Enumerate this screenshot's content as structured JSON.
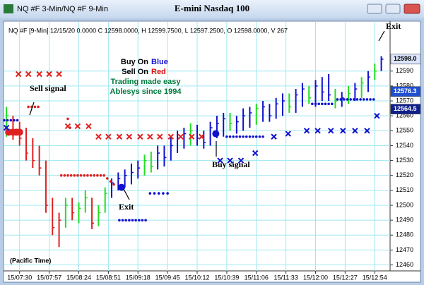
{
  "chart_data": {
    "type": "ohlc",
    "window_title": "NQ #F 3-Min/NQ #F 9-Min",
    "title": "E-mini Nasdaq 100",
    "info": "NQ #F [9-Min] 12/15/20 0.0000 C 12598.0000, H 12599.7500, L 12597.2500, O 12598.0000, V 267",
    "legend_text": [
      {
        "text": "Buy On",
        "color": "#000000"
      },
      {
        "text": "Blue",
        "color": "#1010d0"
      },
      {
        "text": "Sell On",
        "color": "#000000"
      },
      {
        "text": "Red",
        "color": "#e01010"
      },
      {
        "text": "Trading made easy",
        "color": "#007a3d"
      },
      {
        "text": "Ablesys since 1994",
        "color": "#007a3d"
      }
    ],
    "annotations": [
      "Sell signal",
      "Exit",
      "Buy signal",
      "Exit",
      "(Pacific Time)"
    ],
    "xlim": [
      -14,
      338
    ],
    "ylim": [
      12456,
      12623
    ],
    "xticks": [
      {
        "value": 0,
        "label": "15/07:30"
      },
      {
        "value": 27,
        "label": "15/07:57"
      },
      {
        "value": 54,
        "label": "15/08:24"
      },
      {
        "value": 81,
        "label": "15/08:51"
      },
      {
        "value": 108,
        "label": "15/09:18"
      },
      {
        "value": 135,
        "label": "15/09:45"
      },
      {
        "value": 162,
        "label": "15/10:12"
      },
      {
        "value": 189,
        "label": "15/10:39"
      },
      {
        "value": 216,
        "label": "15/11:06"
      },
      {
        "value": 243,
        "label": "15/11:33"
      },
      {
        "value": 270,
        "label": "15/12:00"
      },
      {
        "value": 297,
        "label": "15/12:27"
      },
      {
        "value": 324,
        "label": "15/12:54"
      }
    ],
    "yticks": [
      12460,
      12470,
      12480,
      12490,
      12500,
      12510,
      12520,
      12530,
      12540,
      12550,
      12560,
      12570,
      12580,
      12590
    ],
    "price_markers": [
      {
        "value": 12598,
        "label": "12598.0",
        "color": "#dce6ff",
        "text_color": "#000000"
      },
      {
        "value": 12576.3,
        "label": "12576.3",
        "color": "#2050d0",
        "text_color": "#ffffff"
      },
      {
        "value": 12564.5,
        "label": "12564.5",
        "color": "#10208a",
        "text_color": "#ffffff"
      }
    ],
    "grid": true,
    "grid_color": "#9ee8f0",
    "bars": {
      "x": [
        -12,
        -6,
        0,
        6,
        12,
        18,
        24,
        30,
        36,
        42,
        48,
        54,
        60,
        66,
        72,
        78,
        84,
        90,
        96,
        102,
        108,
        114,
        120,
        126,
        132,
        138,
        144,
        150,
        156,
        162,
        168,
        174,
        180,
        186,
        192,
        198,
        204,
        210,
        216,
        222,
        228,
        234,
        240,
        246,
        252,
        258,
        264,
        270,
        276,
        282,
        288,
        294,
        300,
        306,
        312,
        318,
        324,
        330
      ],
      "low": [
        12546,
        12544,
        12540,
        12530,
        12525,
        12520,
        12495,
        12480,
        12472,
        12485,
        12490,
        12488,
        12495,
        12484,
        12486,
        12495,
        12505,
        12510,
        12512,
        12514,
        12518,
        12520,
        12522,
        12524,
        12526,
        12530,
        12535,
        12538,
        12540,
        12540,
        12538,
        12540,
        12545,
        12546,
        12550,
        12548,
        12550,
        12552,
        12554,
        12556,
        12556,
        12558,
        12560,
        12562,
        12562,
        12566,
        12568,
        12566,
        12570,
        12570,
        12565,
        12566,
        12568,
        12570,
        12572,
        12576,
        12584,
        12590
      ],
      "high": [
        12566,
        12560,
        12556,
        12552,
        12545,
        12540,
        12530,
        12505,
        12495,
        12505,
        12505,
        12502,
        12510,
        12505,
        12500,
        12512,
        12518,
        12522,
        12524,
        12528,
        12530,
        12534,
        12536,
        12540,
        12540,
        12546,
        12550,
        12552,
        12555,
        12554,
        12550,
        12556,
        12560,
        12562,
        12562,
        12560,
        12565,
        12566,
        12568,
        12570,
        12568,
        12572,
        12575,
        12575,
        12578,
        12582,
        12580,
        12584,
        12586,
        12588,
        12578,
        12576,
        12580,
        12582,
        12586,
        12590,
        12595,
        12600
      ],
      "close": [
        12560,
        12548,
        12545,
        12535,
        12530,
        12525,
        12500,
        12485,
        12490,
        12500,
        12495,
        12498,
        12505,
        12488,
        12495,
        12508,
        12515,
        12518,
        12520,
        12522,
        12525,
        12530,
        12526,
        12535,
        12532,
        12540,
        12545,
        12548,
        12550,
        12545,
        12542,
        12552,
        12555,
        12558,
        12555,
        12556,
        12560,
        12562,
        12565,
        12566,
        12560,
        12568,
        12570,
        12566,
        12574,
        12578,
        12572,
        12580,
        12576,
        12574,
        12570,
        12572,
        12575,
        12578,
        12582,
        12586,
        12590,
        12598
      ],
      "colors": [
        "#22dd22",
        "#e02020",
        "#e02020",
        "#e02020",
        "#e02020",
        "#e02020",
        "#e02020",
        "#e02020",
        "#e02020",
        "#22dd22",
        "#e02020",
        "#22dd22",
        "#22dd22",
        "#e02020",
        "#22dd22",
        "#22dd22",
        "#1010d0",
        "#1010d0",
        "#1010d0",
        "#1010d0",
        "#1010d0",
        "#22dd22",
        "#22dd22",
        "#1010d0",
        "#1010d0",
        "#1010d0",
        "#1010d0",
        "#1010d0",
        "#22dd22",
        "#1010d0",
        "#1010d0",
        "#1010d0",
        "#1010d0",
        "#1010d0",
        "#22dd22",
        "#1010d0",
        "#1010d0",
        "#1010d0",
        "#22dd22",
        "#1010d0",
        "#1010d0",
        "#1010d0",
        "#1010d0",
        "#22dd22",
        "#1010d0",
        "#1010d0",
        "#22dd22",
        "#1010d0",
        "#1010d0",
        "#1010d0",
        "#22dd22",
        "#1010d0",
        "#22dd22",
        "#1010d0",
        "#22dd22",
        "#1010d0",
        "#22dd22",
        "#1010d0"
      ]
    },
    "markers": [
      {
        "shape": "x",
        "color": "#e02020",
        "x": [
          -1,
          8,
          18,
          27,
          36
        ],
        "y": [
          12588,
          12588,
          12588,
          12588,
          12588
        ]
      },
      {
        "shape": "x",
        "color": "#e02020",
        "x": [
          44,
          53,
          63
        ],
        "y": [
          12553,
          12553,
          12553
        ]
      },
      {
        "shape": "x",
        "color": "#e02020",
        "x": [
          72,
          81,
          91,
          100,
          110,
          119,
          128,
          138,
          147,
          157,
          166
        ],
        "y": [
          12546,
          12546,
          12546,
          12546,
          12546,
          12546,
          12546,
          12546,
          12546,
          12546,
          12546
        ]
      },
      {
        "shape": "dot",
        "color": "#e02020",
        "x": [
          8,
          11,
          14,
          17
        ],
        "y": [
          12566,
          12566,
          12566,
          12566
        ]
      },
      {
        "shape": "dot",
        "color": "#e02020",
        "x": [
          44,
          46
        ],
        "y": [
          12558,
          12552
        ]
      },
      {
        "shape": "dot",
        "color": "#e02020",
        "x": [
          38,
          41,
          44,
          47,
          50,
          53,
          56,
          59,
          62,
          65,
          68,
          71,
          74,
          77
        ],
        "y": [
          12520,
          12520,
          12520,
          12520,
          12520,
          12520,
          12520,
          12520,
          12520,
          12520,
          12520,
          12520,
          12520,
          12520
        ]
      },
      {
        "shape": "dot",
        "color": "#e02020",
        "x": [
          80,
          83,
          86
        ],
        "y": [
          12518,
          12516,
          12514
        ]
      },
      {
        "shape": "bigdot",
        "color": "#e02020",
        "x": [
          -10,
          -6,
          -3,
          0
        ],
        "y": [
          12549,
          12549,
          12549,
          12549
        ]
      },
      {
        "shape": "dot",
        "color": "#1010d0",
        "x": [
          -14,
          -11,
          -8,
          -5,
          -2
        ],
        "y": [
          12557,
          12557,
          12557,
          12557,
          12557
        ]
      },
      {
        "shape": "dot",
        "color": "#1010d0",
        "x": [
          91,
          94,
          97,
          100,
          103,
          106,
          109,
          112,
          115
        ],
        "y": [
          12490,
          12490,
          12490,
          12490,
          12490,
          12490,
          12490,
          12490,
          12490
        ]
      },
      {
        "shape": "dot",
        "color": "#1010d0",
        "x": [
          119,
          123,
          127,
          131,
          135
        ],
        "y": [
          12508,
          12508,
          12508,
          12508,
          12508
        ]
      },
      {
        "shape": "dot",
        "color": "#1010d0",
        "x": [
          189,
          192,
          195,
          198,
          201,
          204,
          207,
          210,
          213,
          216,
          219,
          222
        ],
        "y": [
          12546,
          12546,
          12546,
          12546,
          12546,
          12546,
          12546,
          12546,
          12546,
          12546,
          12546,
          12546
        ]
      },
      {
        "shape": "dot",
        "color": "#1010d0",
        "x": [
          267,
          270,
          273,
          276,
          279,
          282,
          285
        ],
        "y": [
          12568,
          12568,
          12568,
          12568,
          12568,
          12568,
          12568
        ]
      },
      {
        "shape": "dot",
        "color": "#1010d0",
        "x": [
          290,
          293,
          296,
          299,
          302,
          305,
          308,
          311,
          314,
          317,
          320,
          323
        ],
        "y": [
          12571,
          12571,
          12571,
          12571,
          12571,
          12571,
          12571,
          12571,
          12571,
          12571,
          12571,
          12571
        ]
      },
      {
        "shape": "bigdot",
        "color": "#1010d0",
        "x": [
          93,
          179
        ],
        "y": [
          12512,
          12548
        ]
      },
      {
        "shape": "x",
        "color": "#1010d0",
        "x": [
          -12,
          183,
          192,
          202,
          215,
          232,
          245,
          262,
          272,
          284,
          295,
          306,
          317,
          326
        ],
        "y": [
          12552,
          12530,
          12530,
          12530,
          12535,
          12546,
          12548,
          12550,
          12550,
          12550,
          12550,
          12550,
          12550,
          12560
        ]
      }
    ]
  }
}
